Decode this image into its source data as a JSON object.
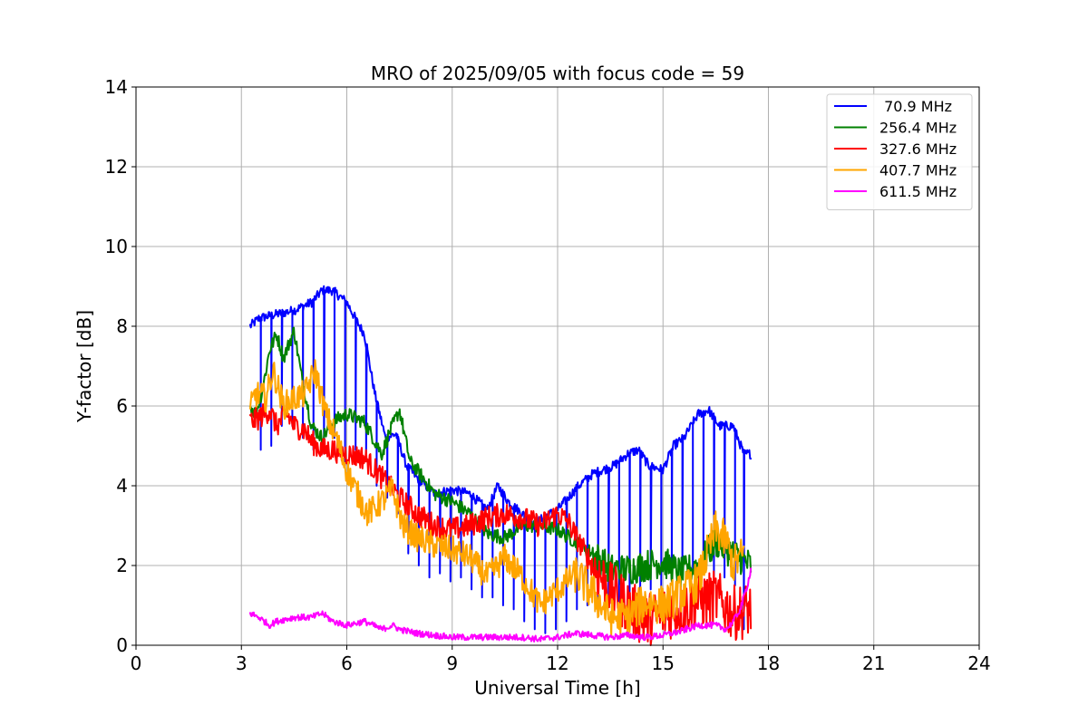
{
  "chart_data": {
    "type": "line",
    "title": "MRO of 2025/09/05 with focus code = 59",
    "xlabel": "Universal Time [h]",
    "ylabel": "Y-factor [dB]",
    "xlim": [
      0,
      24
    ],
    "ylim": [
      0,
      14
    ],
    "xticks": [
      0,
      3,
      6,
      9,
      12,
      15,
      18,
      21,
      24
    ],
    "yticks": [
      0,
      2,
      4,
      6,
      8,
      10,
      12,
      14
    ],
    "grid": true,
    "legend_position": "top-right",
    "series": [
      {
        "name": " 70.9 MHz",
        "color": "#0000ff",
        "x": [
          3.25,
          3.5,
          4.0,
          4.5,
          5.0,
          5.3,
          5.6,
          6.0,
          6.3,
          6.5,
          6.8,
          7.1,
          7.4,
          7.7,
          8.0,
          8.5,
          9.0,
          9.5,
          10.0,
          10.3,
          10.6,
          11.0,
          11.3,
          11.6,
          12.0,
          12.3,
          12.6,
          13.0,
          13.3,
          13.6,
          14.0,
          14.3,
          14.6,
          15.0,
          15.3,
          15.6,
          16.0,
          16.3,
          16.6,
          17.0,
          17.3,
          17.5
        ],
        "y": [
          8.0,
          8.2,
          8.3,
          8.4,
          8.6,
          8.9,
          8.9,
          8.6,
          8.1,
          7.8,
          6.3,
          5.2,
          5.3,
          4.5,
          4.2,
          3.8,
          3.9,
          3.8,
          3.4,
          4.0,
          3.6,
          3.3,
          3.0,
          3.2,
          3.4,
          3.7,
          4.0,
          4.3,
          4.4,
          4.5,
          4.8,
          4.9,
          4.5,
          4.4,
          5.0,
          5.2,
          5.8,
          5.9,
          5.5,
          5.5,
          4.8,
          4.8
        ],
        "dips": [
          [
            3.55,
            4.9
          ],
          [
            3.85,
            5.0
          ],
          [
            4.15,
            5.5
          ],
          [
            4.45,
            5.5
          ],
          [
            4.75,
            5.2
          ],
          [
            5.05,
            4.9
          ],
          [
            5.35,
            4.8
          ],
          [
            5.65,
            5.2
          ],
          [
            5.95,
            4.5
          ],
          [
            6.25,
            4.9
          ],
          [
            6.55,
            4.7
          ],
          [
            6.85,
            4.0
          ],
          [
            7.15,
            3.7
          ],
          [
            7.45,
            3.3
          ],
          [
            7.75,
            2.3
          ],
          [
            8.05,
            2.0
          ],
          [
            8.35,
            1.7
          ],
          [
            8.65,
            1.8
          ],
          [
            8.95,
            1.6
          ],
          [
            9.25,
            1.7
          ],
          [
            9.55,
            1.4
          ],
          [
            9.85,
            1.2
          ],
          [
            10.15,
            1.2
          ],
          [
            10.45,
            1.0
          ],
          [
            10.75,
            0.9
          ],
          [
            11.05,
            0.6
          ],
          [
            11.35,
            0.4
          ],
          [
            11.65,
            0.3
          ],
          [
            11.95,
            0.4
          ],
          [
            12.25,
            0.6
          ],
          [
            12.55,
            0.9
          ],
          [
            12.85,
            1.0
          ],
          [
            13.15,
            1.1
          ],
          [
            13.45,
            1.1
          ],
          [
            13.75,
            1.1
          ],
          [
            14.05,
            1.0
          ],
          [
            14.35,
            1.2
          ],
          [
            14.65,
            1.4
          ],
          [
            14.95,
            1.4
          ],
          [
            15.25,
            1.6
          ],
          [
            15.55,
            1.7
          ],
          [
            15.85,
            1.8
          ],
          [
            16.15,
            1.9
          ],
          [
            16.45,
            1.6
          ],
          [
            16.75,
            1.7
          ],
          [
            17.05,
            1.5
          ],
          [
            17.3,
            0.4
          ]
        ]
      },
      {
        "name": "256.4 MHz",
        "color": "#008000",
        "x": [
          3.25,
          3.4,
          3.6,
          3.8,
          4.0,
          4.2,
          4.5,
          4.7,
          5.0,
          5.3,
          5.6,
          6.0,
          6.5,
          7.0,
          7.2,
          7.5,
          7.8,
          8.0,
          8.5,
          9.0,
          9.5,
          10.0,
          10.5,
          11.0,
          11.5,
          12.0,
          12.5,
          13.0,
          13.5,
          14.0,
          14.5,
          15.0,
          15.5,
          16.0,
          16.5,
          17.0,
          17.5
        ],
        "y": [
          6.0,
          5.8,
          6.4,
          7.4,
          7.8,
          7.2,
          7.9,
          6.8,
          5.5,
          5.2,
          5.6,
          5.8,
          5.6,
          4.8,
          5.3,
          5.9,
          4.6,
          4.4,
          3.8,
          3.6,
          3.3,
          2.8,
          2.7,
          3.0,
          3.0,
          2.9,
          2.6,
          2.3,
          1.9,
          1.9,
          2.0,
          2.1,
          1.8,
          2.0,
          2.6,
          2.3,
          2.0
        ]
      },
      {
        "name": "327.6 MHz",
        "color": "#ff0000",
        "x": [
          3.25,
          3.5,
          3.8,
          4.0,
          4.3,
          4.5,
          4.8,
          5.0,
          5.3,
          5.6,
          6.0,
          6.5,
          7.0,
          7.5,
          8.0,
          8.5,
          9.0,
          9.5,
          10.0,
          10.5,
          11.0,
          11.5,
          12.0,
          12.3,
          12.6,
          13.0,
          13.5,
          14.0,
          14.5,
          15.0,
          15.5,
          16.0,
          16.5,
          17.0,
          17.5
        ],
        "y": [
          5.6,
          5.7,
          5.9,
          5.5,
          5.8,
          5.5,
          5.4,
          5.1,
          4.9,
          4.9,
          4.8,
          4.7,
          4.2,
          3.7,
          3.3,
          3.0,
          2.9,
          3.0,
          3.2,
          3.3,
          3.2,
          3.0,
          3.3,
          3.1,
          2.6,
          2.0,
          1.4,
          1.0,
          0.6,
          0.8,
          0.9,
          1.1,
          1.2,
          0.8,
          0.9
        ]
      },
      {
        "name": "407.7 MHz",
        "color": "#ffa500",
        "x": [
          3.25,
          3.4,
          3.7,
          3.9,
          4.2,
          4.5,
          4.8,
          5.1,
          5.4,
          5.7,
          6.0,
          6.3,
          6.6,
          7.0,
          7.3,
          7.6,
          8.0,
          8.5,
          9.0,
          9.5,
          10.0,
          10.5,
          11.0,
          11.5,
          12.0,
          12.5,
          13.0,
          13.5,
          14.0,
          14.5,
          15.0,
          15.5,
          16.0,
          16.5,
          16.8,
          17.0,
          17.3
        ],
        "y": [
          5.9,
          6.3,
          6.2,
          6.9,
          6.0,
          6.2,
          6.3,
          6.9,
          5.8,
          5.2,
          4.4,
          3.8,
          3.3,
          3.6,
          3.9,
          3.0,
          2.7,
          2.5,
          2.4,
          2.2,
          1.7,
          2.2,
          1.7,
          1.0,
          1.4,
          1.8,
          1.3,
          0.7,
          0.7,
          1.1,
          1.0,
          1.3,
          1.6,
          2.9,
          2.6,
          2.0,
          2.3
        ]
      },
      {
        "name": "611.5 MHz",
        "color": "#ff00ff",
        "x": [
          3.25,
          3.5,
          3.8,
          4.0,
          4.5,
          5.0,
          5.3,
          5.6,
          6.0,
          6.5,
          7.0,
          7.3,
          7.5,
          8.0,
          8.5,
          9.0,
          9.5,
          10.0,
          10.5,
          11.0,
          11.5,
          12.0,
          12.5,
          13.0,
          13.5,
          14.0,
          14.5,
          15.0,
          15.5,
          16.0,
          16.5,
          16.8,
          17.0,
          17.2,
          17.4,
          17.5
        ],
        "y": [
          0.8,
          0.7,
          0.5,
          0.6,
          0.7,
          0.7,
          0.8,
          0.6,
          0.5,
          0.6,
          0.4,
          0.5,
          0.4,
          0.3,
          0.25,
          0.2,
          0.2,
          0.2,
          0.2,
          0.2,
          0.15,
          0.2,
          0.3,
          0.25,
          0.2,
          0.25,
          0.2,
          0.25,
          0.35,
          0.5,
          0.5,
          0.4,
          0.6,
          0.9,
          1.5,
          1.9
        ]
      }
    ]
  }
}
